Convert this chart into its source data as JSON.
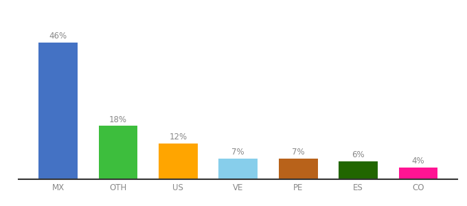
{
  "categories": [
    "MX",
    "OTH",
    "US",
    "VE",
    "PE",
    "ES",
    "CO"
  ],
  "values": [
    46,
    18,
    12,
    7,
    7,
    6,
    4
  ],
  "bar_colors": [
    "#4472C4",
    "#3DBE3D",
    "#FFA500",
    "#87CEEB",
    "#B8621A",
    "#216600",
    "#FF1493"
  ],
  "label_fontsize": 8.5,
  "tick_fontsize": 8.5,
  "ylim": [
    0,
    52
  ],
  "bar_width": 0.65,
  "background_color": "#ffffff",
  "label_color": "#888888",
  "tick_color": "#888888"
}
